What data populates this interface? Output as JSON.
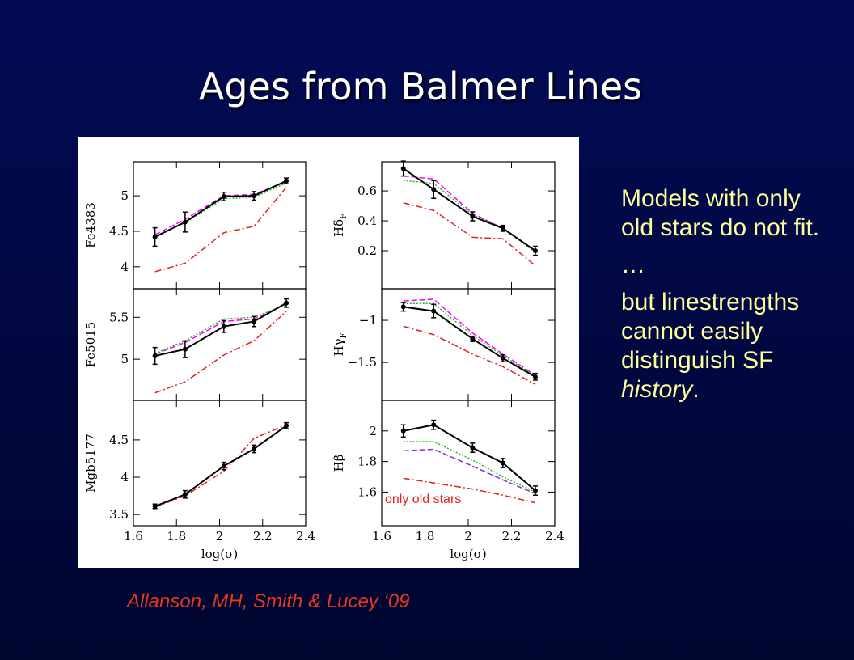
{
  "title": "Ages from Balmer Lines",
  "bullets": [
    [
      "Models with only old stars do not fit."
    ],
    [
      "…"
    ],
    [
      "but linestrengths cannot easily distinguish SF ",
      "history",
      "."
    ]
  ],
  "citation": "Allanson, MH, Smith & Lucey ‘09",
  "chart_data": [
    {
      "type": "line",
      "ylabel": "Fe4383",
      "xlim": [
        1.6,
        2.4
      ],
      "xticks": [
        1.6,
        1.8,
        2,
        2.2,
        2.4
      ],
      "ylim": [
        3.69,
        5.48
      ],
      "yticks": [
        4,
        4.5,
        5
      ],
      "x": [
        1.7,
        1.84,
        2.02,
        2.16,
        2.31
      ],
      "series": [
        {
          "color": "#ff00ff",
          "style": "dashed",
          "values": [
            4.45,
            4.67,
            5.0,
            5.02,
            5.2
          ]
        },
        {
          "color": "#22bb22",
          "style": "dotted",
          "values": [
            4.43,
            4.62,
            4.96,
            4.98,
            5.18
          ]
        },
        {
          "color": "#e02020",
          "style": "dashdot",
          "values": [
            3.93,
            4.05,
            4.48,
            4.57,
            5.12
          ]
        },
        {
          "color": "#000000",
          "style": "solid",
          "values": [
            4.42,
            4.63,
            4.99,
            5.0,
            5.21
          ],
          "errors": [
            0.13,
            0.14,
            0.06,
            0.06,
            0.04
          ]
        }
      ]
    },
    {
      "type": "line",
      "ylabel": "Fe5015",
      "xlim": [
        1.6,
        2.4
      ],
      "xticks": [
        1.6,
        1.8,
        2,
        2.2,
        2.4
      ],
      "ylim": [
        4.51,
        5.84
      ],
      "yticks": [
        5,
        5.5
      ],
      "x": [
        1.7,
        1.84,
        2.02,
        2.16,
        2.31
      ],
      "series": [
        {
          "color": "#ff00ff",
          "style": "dashed",
          "values": [
            5.06,
            5.2,
            5.45,
            5.48,
            5.66
          ]
        },
        {
          "color": "#22bb22",
          "style": "dotted",
          "values": [
            5.07,
            5.22,
            5.48,
            5.5,
            5.65
          ]
        },
        {
          "color": "#e02020",
          "style": "dashdot",
          "values": [
            4.6,
            4.73,
            5.05,
            5.22,
            5.57
          ]
        },
        {
          "color": "#000000",
          "style": "solid",
          "values": [
            5.04,
            5.12,
            5.39,
            5.45,
            5.67
          ],
          "errors": [
            0.1,
            0.1,
            0.07,
            0.06,
            0.05
          ]
        }
      ]
    },
    {
      "type": "line",
      "ylabel": "Mgb5177",
      "xlabel": "log(σ)",
      "xlim": [
        1.6,
        2.4
      ],
      "xticks": [
        1.6,
        1.8,
        2,
        2.2,
        2.4
      ],
      "ylim": [
        3.35,
        5.03
      ],
      "yticks": [
        3.5,
        4,
        4.5
      ],
      "x": [
        1.7,
        1.84,
        2.02,
        2.16,
        2.31
      ],
      "series": [
        {
          "color": "#e02020",
          "style": "dashdot",
          "values": [
            3.6,
            3.75,
            4.08,
            4.52,
            4.7
          ]
        },
        {
          "color": "#000000",
          "style": "solid",
          "values": [
            3.61,
            3.77,
            4.15,
            4.38,
            4.69
          ],
          "errors": [
            0.03,
            0.05,
            0.05,
            0.05,
            0.04
          ]
        }
      ]
    },
    {
      "type": "line",
      "ylabel": "Hδ",
      "ylabel_sub": "F",
      "xlim": [
        1.6,
        2.4
      ],
      "xticks": [
        1.6,
        1.8,
        2,
        2.2,
        2.4
      ],
      "ylim": [
        -0.054,
        0.795
      ],
      "yticks": [
        0.2,
        0.4,
        0.6
      ],
      "x": [
        1.7,
        1.84,
        2.02,
        2.16,
        2.31
      ],
      "series": [
        {
          "color": "#ff00ff",
          "style": "dashed",
          "values": [
            0.7,
            0.68,
            0.45,
            0.35,
            0.2
          ]
        },
        {
          "color": "#22bb22",
          "style": "dotted",
          "values": [
            0.67,
            0.65,
            0.44,
            0.35,
            0.19
          ]
        },
        {
          "color": "#e02020",
          "style": "dashdot",
          "values": [
            0.52,
            0.47,
            0.29,
            0.28,
            0.1
          ]
        },
        {
          "color": "#000000",
          "style": "solid",
          "values": [
            0.75,
            0.61,
            0.43,
            0.35,
            0.2
          ],
          "errors": [
            0.05,
            0.06,
            0.03,
            0.02,
            0.03
          ]
        }
      ]
    },
    {
      "type": "line",
      "ylabel": "Hγ",
      "ylabel_sub": "F",
      "xlim": [
        1.6,
        2.4
      ],
      "xticks": [
        1.6,
        1.8,
        2,
        2.2,
        2.4
      ],
      "ylim": [
        -1.95,
        -0.625
      ],
      "yticks": [
        {
          "value": -1.5,
          "label": "−1.5"
        },
        {
          "value": -1,
          "label": "−1"
        }
      ],
      "x": [
        1.7,
        1.84,
        2.02,
        2.16,
        2.31
      ],
      "series": [
        {
          "color": "#ff00ff",
          "style": "dashed",
          "values": [
            -0.77,
            -0.75,
            -1.15,
            -1.4,
            -1.65
          ]
        },
        {
          "color": "#22bb22",
          "style": "dotted",
          "values": [
            -0.8,
            -0.8,
            -1.18,
            -1.42,
            -1.66
          ]
        },
        {
          "color": "#e02020",
          "style": "dashdot",
          "values": [
            -1.07,
            -1.17,
            -1.4,
            -1.55,
            -1.76
          ]
        },
        {
          "color": "#000000",
          "style": "solid",
          "values": [
            -0.84,
            -0.89,
            -1.22,
            -1.45,
            -1.67
          ],
          "errors": [
            0.05,
            0.08,
            0.03,
            0.04,
            0.04
          ]
        }
      ]
    },
    {
      "type": "line",
      "ylabel": "Hβ",
      "xlabel": "log(σ)",
      "xlim": [
        1.6,
        2.4
      ],
      "xticks": [
        1.6,
        1.8,
        2,
        2.2,
        2.4
      ],
      "ylim": [
        1.38,
        2.2
      ],
      "yticks": [
        1.6,
        1.8,
        2
      ],
      "annotation": "only old stars",
      "x": [
        1.7,
        1.84,
        2.02,
        2.16,
        2.31
      ],
      "series": [
        {
          "color": "#8a2be2",
          "style": "dashed",
          "values": [
            1.87,
            1.88,
            1.77,
            1.68,
            1.59
          ]
        },
        {
          "color": "#22bb22",
          "style": "dotted",
          "values": [
            1.93,
            1.93,
            1.81,
            1.7,
            1.6
          ]
        },
        {
          "color": "#e02020",
          "style": "dashdot",
          "values": [
            1.69,
            1.66,
            1.62,
            1.58,
            1.53
          ]
        },
        {
          "color": "#000000",
          "style": "solid",
          "values": [
            2.0,
            2.04,
            1.89,
            1.79,
            1.61
          ],
          "errors": [
            0.04,
            0.03,
            0.03,
            0.03,
            0.03
          ]
        }
      ]
    }
  ]
}
